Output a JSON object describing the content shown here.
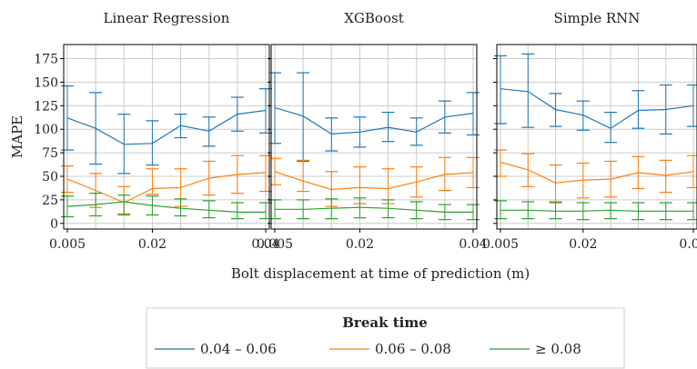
{
  "chart_data": {
    "type": "line",
    "error_bars": true,
    "shared_y": true,
    "grid": true,
    "ylabel": "MAPE",
    "xlabel": "Bolt displacement at time of prediction (m)",
    "xlim": [
      0.005,
      0.04
    ],
    "ylim": [
      -6,
      190
    ],
    "xticks": [
      0.005,
      0.02,
      0.04
    ],
    "xtick_labels": [
      "0.005",
      "0.02",
      "0.04"
    ],
    "yticks": [
      0,
      25,
      50,
      75,
      100,
      125,
      150,
      175
    ],
    "ytick_labels": [
      "0",
      "25",
      "50",
      "75",
      "100",
      "125",
      "150",
      "175"
    ],
    "x": [
      0.005,
      0.01,
      0.015,
      0.02,
      0.025,
      0.03,
      0.035,
      0.04
    ],
    "legend": {
      "title": "Break time",
      "placement": "bottom-center",
      "entries": [
        "0.04 – 0.06",
        "0.06 – 0.08",
        "≥ 0.08"
      ]
    },
    "panels": [
      {
        "title": "Linear Regression",
        "series": [
          {
            "name": "0.04 – 0.06",
            "color": "#1f77b4",
            "values": [
              112,
              101,
              84,
              85,
              104,
              98,
              116,
              120
            ],
            "lower": [
              78,
              63,
              53,
              62,
              91,
              82,
              98,
              96
            ],
            "upper": [
              146,
              139,
              116,
              109,
              116,
              113,
              134,
              143
            ]
          },
          {
            "name": "0.06 – 0.08",
            "color": "#ff7f0e",
            "values": [
              47,
              35,
              22,
              37,
              38,
              48,
              52,
              54
            ],
            "lower": [
              33,
              17,
              10,
              31,
              18,
              30,
              32,
              34
            ],
            "upper": [
              61,
              53,
              39,
              58,
              58,
              66,
              72,
              72
            ]
          },
          {
            "name": "≥ 0.08",
            "color": "#2ca02c",
            "values": [
              18,
              20,
              23,
              19,
              16,
              14,
              12,
              12
            ],
            "lower": [
              7,
              8,
              9,
              9,
              8,
              6,
              5,
              5
            ],
            "upper": [
              29,
              32,
              30,
              29,
              26,
              24,
              22,
              22
            ]
          }
        ]
      },
      {
        "title": "XGBoost",
        "series": [
          {
            "name": "0.04 – 0.06",
            "color": "#1f77b4",
            "values": [
              123,
              114,
              95,
              97,
              102,
              97,
              113,
              117
            ],
            "lower": [
              85,
              66,
              77,
              81,
              87,
              83,
              96,
              94
            ],
            "upper": [
              160,
              160,
              112,
              113,
              118,
              112,
              130,
              139
            ]
          },
          {
            "name": "0.06 – 0.08",
            "color": "#ff7f0e",
            "values": [
              55,
              45,
              36,
              38,
              37,
              44,
              52,
              54
            ],
            "lower": [
              41,
              34,
              18,
              21,
              21,
              28,
              35,
              38
            ],
            "upper": [
              69,
              67,
              55,
              60,
              58,
              60,
              70,
              70
            ]
          },
          {
            "name": "≥ 0.08",
            "color": "#2ca02c",
            "values": [
              15,
              15,
              16,
              17,
              16,
              14,
              12,
              12
            ],
            "lower": [
              5,
              5,
              5,
              6,
              6,
              5,
              4,
              4
            ],
            "upper": [
              25,
              25,
              26,
              27,
              25,
              23,
              20,
              20
            ]
          }
        ]
      },
      {
        "title": "Simple RNN",
        "series": [
          {
            "name": "0.04 – 0.06",
            "color": "#1f77b4",
            "values": [
              143,
              140,
              121,
              115,
              101,
              120,
              121,
              125
            ],
            "lower": [
              106,
              102,
              103,
              99,
              86,
              101,
              95,
              103
            ],
            "upper": [
              178,
              180,
              138,
              130,
              118,
              141,
              147,
              147
            ]
          },
          {
            "name": "0.06 – 0.08",
            "color": "#ff7f0e",
            "values": [
              65,
              57,
              43,
              46,
              47,
              54,
              51,
              55
            ],
            "lower": [
              50,
              39,
              23,
              27,
              28,
              37,
              33,
              38
            ],
            "upper": [
              78,
              74,
              62,
              64,
              66,
              71,
              67,
              72
            ]
          },
          {
            "name": "≥ 0.08",
            "color": "#2ca02c",
            "values": [
              14,
              14,
              13,
              13,
              14,
              13,
              13,
              13
            ],
            "lower": [
              5,
              5,
              5,
              4,
              5,
              4,
              4,
              4
            ],
            "upper": [
              24,
              23,
              22,
              22,
              22,
              22,
              22,
              22
            ]
          }
        ]
      }
    ]
  }
}
